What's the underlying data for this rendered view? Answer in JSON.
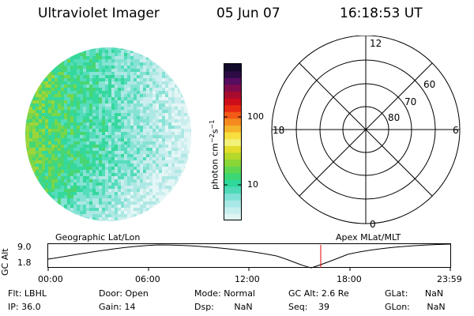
{
  "header": {
    "instrument": "Ultraviolet Imager",
    "date": "05 Jun 07",
    "time": "16:18:53 UT"
  },
  "colorbar": {
    "unit_label": "photon cm",
    "unit_sup1": "−2",
    "unit_mid": "s",
    "unit_sup2": "−1",
    "tick_100": "100",
    "tick_10": "10",
    "colors": [
      "#e0f4f4",
      "#c6eeee",
      "#a8e8e6",
      "#7fe0d6",
      "#4ed9b9",
      "#2ed79a",
      "#3cd673",
      "#5fd651",
      "#8ad637",
      "#b6d82a",
      "#e2dc2c",
      "#f2f27a",
      "#f7df3f",
      "#f6b42a",
      "#f58a1f",
      "#f25a16",
      "#e62a12",
      "#cc0d1a",
      "#a70b2d",
      "#7f0b4c",
      "#560c5f",
      "#2d0b44",
      "#120a2a"
    ],
    "interactable": false
  },
  "polar": {
    "labels": {
      "noon": "12",
      "midnight": "0",
      "dawn": "6",
      "dusk": "18",
      "lat60": "60",
      "lat70": "70",
      "lat80": "80"
    }
  },
  "timeline": {
    "left_label": "Geographic Lat/Lon",
    "right_label": "Apex MLat/MLT",
    "y_axis_label": "GC Alt",
    "y_max": "9.0",
    "y_min": "1.8",
    "x_ticks": [
      "00:00",
      "06:00",
      "12:00",
      "18:00",
      "23:59"
    ],
    "marker_color": "#e00000"
  },
  "info": {
    "flt_label": "Flt:",
    "flt_value": "LBHL",
    "ip_label": "IP:",
    "ip_value": "36.0",
    "door_label": "Door:",
    "door_value": "Open",
    "gain_label": "Gain:",
    "gain_value": "14",
    "mode_label": "Mode:",
    "mode_value": "Normal",
    "dsp_label": "Dsp:",
    "dsp_value": "NaN",
    "gcalt_label": "GC Alt:",
    "gcalt_value": "2.6 Re",
    "seq_label": "Seq:",
    "seq_value": "39",
    "glat_label": "GLat:",
    "glat_value": "NaN",
    "glon_label": "GLon:",
    "glon_value": "NaN"
  }
}
